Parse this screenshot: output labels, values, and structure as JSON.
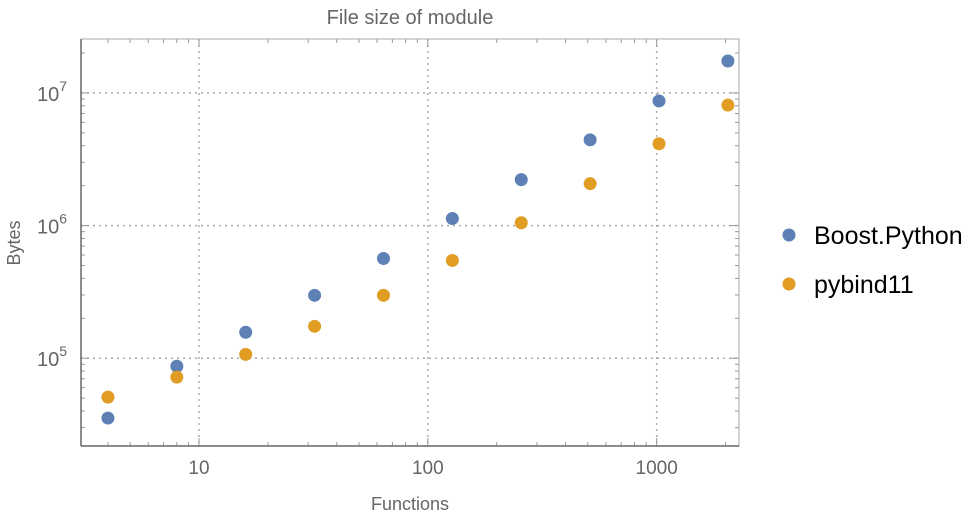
{
  "chart_data": {
    "type": "scatter",
    "title": "File size of module",
    "xlabel": "Functions",
    "ylabel": "Bytes",
    "xscale": "log",
    "yscale": "log",
    "xlim": [
      3.05,
      2290
    ],
    "ylim": [
      21800,
      25500000
    ],
    "grid": true,
    "legend_position": "right",
    "x_ticks": [
      {
        "value": 10,
        "label": "10"
      },
      {
        "value": 100,
        "label": "100"
      },
      {
        "value": 1000,
        "label": "1000"
      }
    ],
    "y_ticks": [
      {
        "value": 100000,
        "base": "10",
        "exp": "5"
      },
      {
        "value": 1000000,
        "base": "10",
        "exp": "6"
      },
      {
        "value": 10000000,
        "base": "10",
        "exp": "7"
      }
    ],
    "x": [
      4,
      8,
      16,
      32,
      64,
      128,
      256,
      512,
      1024,
      2048
    ],
    "series": [
      {
        "name": "Boost.Python",
        "color": "#5E81B5",
        "values": [
          35400,
          87000,
          157000,
          298000,
          565000,
          1130000,
          2220000,
          4430000,
          8700000,
          17400000
        ]
      },
      {
        "name": "pybind11",
        "color": "#E19C24",
        "values": [
          50900,
          72000,
          107000,
          174000,
          298000,
          546000,
          1050000,
          2070000,
          4140000,
          8100000
        ]
      }
    ]
  }
}
